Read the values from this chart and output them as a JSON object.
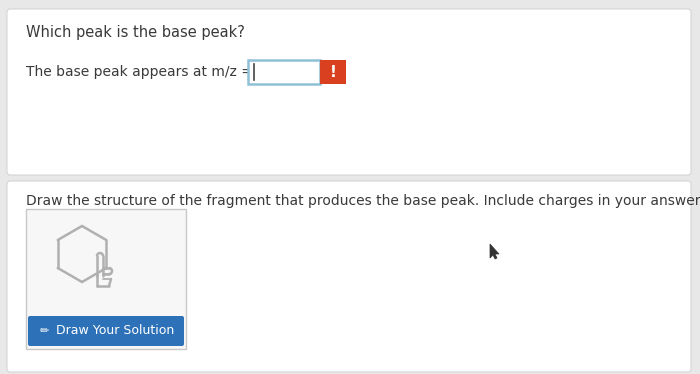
{
  "bg_color": "#e8e8e8",
  "card1_color": "#ffffff",
  "card2_color": "#ffffff",
  "text_color": "#3a3a3a",
  "title1": "Which peak is the base peak?",
  "label1": "The base peak appears at m/z =",
  "title2": "Draw the structure of the fragment that produces the base peak. Include charges in your answer.",
  "button_text": "  Draw Your Solution",
  "button_color": "#2d72b8",
  "button_text_color": "#ffffff",
  "input_border_color": "#8ec0d8",
  "input_bg_color": "#ffffff",
  "alert_color": "#d94020",
  "card_border_color": "#d0d0d0",
  "draw_box_bg": "#f7f7f7",
  "draw_box_border": "#c8c8c8",
  "icon_color": "#b0b0b0",
  "cursor_color": "#333333"
}
